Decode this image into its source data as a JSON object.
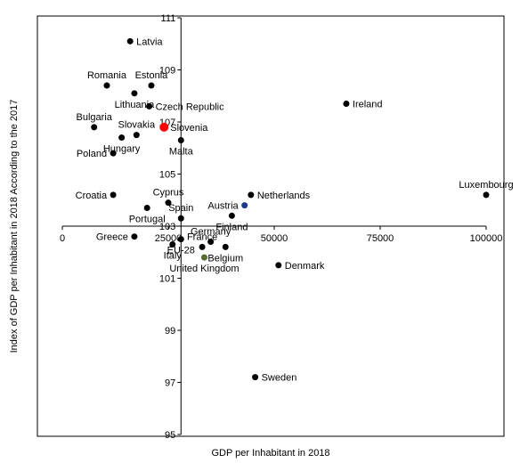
{
  "chart_data": {
    "type": "scatter",
    "title": "",
    "xlabel": "GDP per Inhabitant in 2018",
    "ylabel": "Index of GDP per Inhabitant in 2018 According to the 2017",
    "xlim": [
      0,
      100000
    ],
    "ylim": [
      95,
      111
    ],
    "x_ticks": [
      "0",
      "25000",
      "50000",
      "75000",
      "100000"
    ],
    "y_ticks": [
      "95",
      "97",
      "99",
      "101",
      "103",
      "105",
      "107",
      "109",
      "111"
    ],
    "axes_cross": {
      "x": 28000,
      "y": 103
    },
    "grid": false,
    "legend": "none",
    "colors": {
      "default_point": "#000000",
      "highlight_point": "#ff0000",
      "highlight_label": "#ff0000",
      "eu_point": "#1f3a8a",
      "eu_label": "#4a90d9",
      "france_point": "#556b2f",
      "axis": "#000000"
    },
    "points": [
      {
        "name": "Latvia",
        "x": 16000,
        "y": 110.1,
        "anchor": "right"
      },
      {
        "name": "Romania",
        "x": 10500,
        "y": 108.4,
        "anchor": "above"
      },
      {
        "name": "Estonia",
        "x": 21000,
        "y": 108.4,
        "anchor": "above"
      },
      {
        "name": "Lithuania",
        "x": 17000,
        "y": 108.1,
        "anchor": "below"
      },
      {
        "name": "Czech Republic",
        "x": 20500,
        "y": 107.6,
        "anchor": "right"
      },
      {
        "name": "Ireland",
        "x": 67000,
        "y": 107.7,
        "anchor": "right"
      },
      {
        "name": "Bulgaria",
        "x": 7500,
        "y": 106.8,
        "anchor": "above"
      },
      {
        "name": "Slovakia",
        "x": 17500,
        "y": 106.5,
        "anchor": "above"
      },
      {
        "name": "Slovenia",
        "x": 24000,
        "y": 106.8,
        "anchor": "right",
        "highlight": true
      },
      {
        "name": "Hungary",
        "x": 14000,
        "y": 106.4,
        "anchor": "below"
      },
      {
        "name": "Malta",
        "x": 28000,
        "y": 106.3,
        "anchor": "below"
      },
      {
        "name": "Poland",
        "x": 12000,
        "y": 105.8,
        "anchor": "left"
      },
      {
        "name": "Luxembourg",
        "x": 100000,
        "y": 104.2,
        "anchor": "above"
      },
      {
        "name": "Netherlands",
        "x": 44500,
        "y": 104.2,
        "anchor": "right"
      },
      {
        "name": "Croatia",
        "x": 12000,
        "y": 104.2,
        "anchor": "left"
      },
      {
        "name": "Cyprus",
        "x": 25000,
        "y": 103.9,
        "anchor": "above"
      },
      {
        "name": "Austria",
        "x": 43000,
        "y": 103.8,
        "anchor": "left",
        "color": "eu_point"
      },
      {
        "name": "Portugal",
        "x": 20000,
        "y": 103.7,
        "anchor": "below"
      },
      {
        "name": "Spain",
        "x": 28000,
        "y": 103.3,
        "anchor": "above"
      },
      {
        "name": "Finland",
        "x": 40000,
        "y": 103.4,
        "anchor": "below"
      },
      {
        "name": "EU-28",
        "x": 28000,
        "y": 102.5,
        "anchor": "below",
        "eu": true
      },
      {
        "name": "Germany",
        "x": 35000,
        "y": 102.4,
        "anchor": "above"
      },
      {
        "name": "Greece",
        "x": 17000,
        "y": 102.6,
        "anchor": "left"
      },
      {
        "name": "Italy",
        "x": 26000,
        "y": 102.3,
        "anchor": "below"
      },
      {
        "name": "France",
        "x": 33000,
        "y": 102.2,
        "anchor": "above"
      },
      {
        "name": "Belgium",
        "x": 38500,
        "y": 102.2,
        "anchor": "below"
      },
      {
        "name": "United Kingdom",
        "x": 33500,
        "y": 101.8,
        "anchor": "below",
        "color": "france_point"
      },
      {
        "name": "Denmark",
        "x": 51000,
        "y": 101.5,
        "anchor": "right"
      },
      {
        "name": "Sweden",
        "x": 45500,
        "y": 97.2,
        "anchor": "right"
      }
    ]
  }
}
